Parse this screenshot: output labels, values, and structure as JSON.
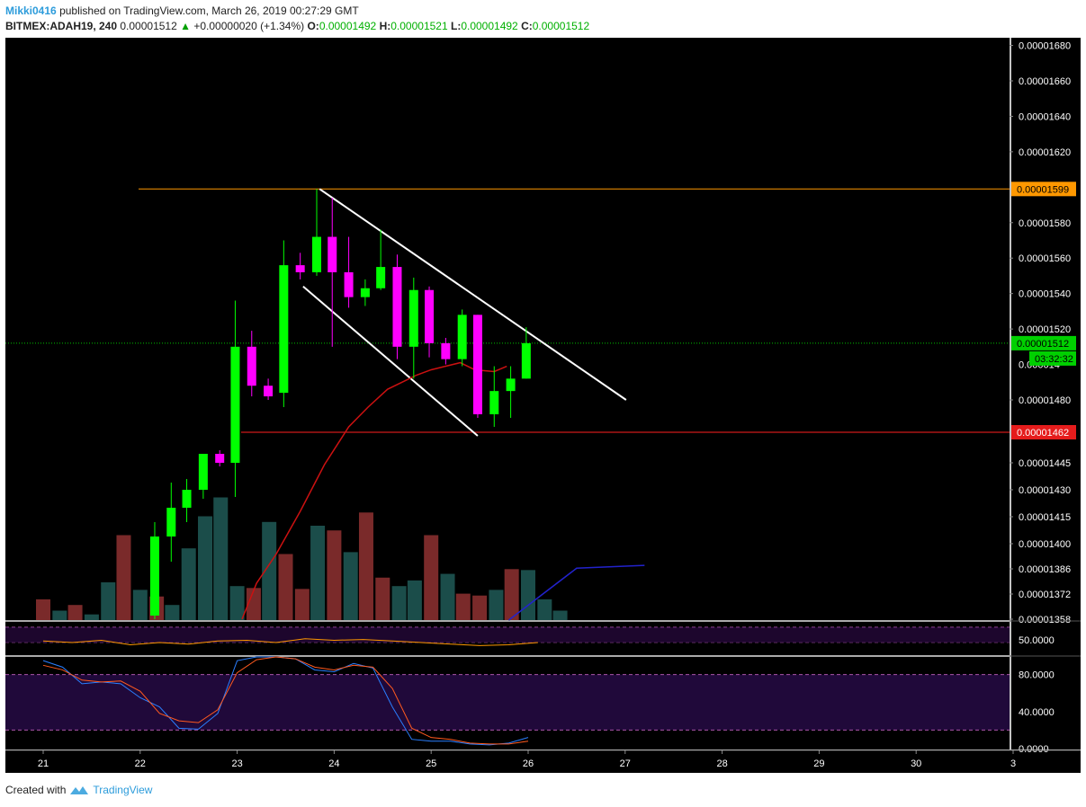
{
  "header": {
    "author": "Mikki0416",
    "published": "published on TradingView.com, March 26, 2019 00:27:29 GMT",
    "symbol": "BITMEX:ADAH19, 240",
    "last": "0.00001512",
    "change_icon": "up-triangle-icon",
    "change": "+0.00000020 (+1.34%)",
    "o_label": "O:",
    "o": "0.00001492",
    "h_label": "H:",
    "h": "0.00001521",
    "l_label": "L:",
    "l": "0.00001492",
    "c_label": "C:",
    "c": "0.00001512"
  },
  "footer": {
    "created": "Created with",
    "brand": "TradingView",
    "logo_icon": "tradingview-logo-icon"
  },
  "colors": {
    "background": "#000000",
    "up": "#00ff00",
    "down": "#ff00ff",
    "vol_up": "#1b4d4a",
    "vol_down": "#7a2a2a",
    "ma": "#cc1111",
    "resistance": "#ff9800",
    "support": "#ff2020",
    "current": "#00c000",
    "channel": "#ffffff",
    "vol_ma": "#2222cc",
    "rsi": "#ff9800",
    "osc_band": "#20093a",
    "stoch_k": "#2a7fff",
    "stoch_d": "#ff5a1f"
  },
  "chart_data": {
    "type": "candlestick",
    "x_tick_labels": [
      "21",
      "22",
      "23",
      "24",
      "25",
      "26",
      "27",
      "28",
      "29",
      "30",
      "3"
    ],
    "price_tick_labels": [
      "0.00001680",
      "0.00001660",
      "0.00001640",
      "0.00001620",
      "0.00001580",
      "0.00001560",
      "0.00001540",
      "0.00001520",
      "0.00001445",
      "0.00001430",
      "0.00001415",
      "0.00001400",
      "0.00001386",
      "0.00001372",
      "0.00001358"
    ],
    "price_tick_values": [
      16.8,
      16.6,
      16.4,
      16.2,
      15.8,
      15.6,
      15.4,
      15.2,
      14.45,
      14.3,
      14.15,
      14.0,
      13.86,
      13.72,
      13.58
    ],
    "price_tick_partial": "0.000014",
    "price_tick_partial_value": 15.0,
    "price_tick_480": "0.00001480",
    "price_tick_480_value": 14.8,
    "resistance_label": "0.00001599",
    "resistance": 15.99,
    "support_label": "0.00001462",
    "support": 14.62,
    "current_label": "0.00001512",
    "current": 15.12,
    "countdown": "03:32:32",
    "candles": [
      {
        "t": 21.8,
        "o": 13.6,
        "h": 14.12,
        "l": 13.58,
        "c": 14.04
      },
      {
        "t": 21.97,
        "o": 14.04,
        "h": 14.34,
        "l": 13.9,
        "c": 14.2
      },
      {
        "t": 22.13,
        "o": 14.2,
        "h": 14.36,
        "l": 14.12,
        "c": 14.3
      },
      {
        "t": 22.3,
        "o": 14.3,
        "h": 14.5,
        "l": 14.25,
        "c": 14.5
      },
      {
        "t": 22.47,
        "o": 14.5,
        "h": 14.52,
        "l": 14.43,
        "c": 14.45
      },
      {
        "t": 22.63,
        "o": 14.45,
        "h": 15.36,
        "l": 14.26,
        "c": 15.1
      },
      {
        "t": 22.8,
        "o": 15.1,
        "h": 15.19,
        "l": 14.82,
        "c": 14.88
      },
      {
        "t": 22.97,
        "o": 14.88,
        "h": 14.92,
        "l": 14.8,
        "c": 14.82
      },
      {
        "t": 23.13,
        "o": 14.84,
        "h": 15.7,
        "l": 14.76,
        "c": 15.56
      },
      {
        "t": 23.3,
        "o": 15.56,
        "h": 15.63,
        "l": 15.48,
        "c": 15.52
      },
      {
        "t": 23.47,
        "o": 15.52,
        "h": 15.99,
        "l": 15.5,
        "c": 15.72
      },
      {
        "t": 23.63,
        "o": 15.72,
        "h": 15.94,
        "l": 15.1,
        "c": 15.52
      },
      {
        "t": 23.8,
        "o": 15.52,
        "h": 15.72,
        "l": 15.32,
        "c": 15.38
      },
      {
        "t": 23.97,
        "o": 15.38,
        "h": 15.48,
        "l": 15.33,
        "c": 15.43
      },
      {
        "t": 24.13,
        "o": 15.43,
        "h": 15.76,
        "l": 15.42,
        "c": 15.55
      },
      {
        "t": 24.3,
        "o": 15.55,
        "h": 15.62,
        "l": 15.03,
        "c": 15.1
      },
      {
        "t": 24.47,
        "o": 15.1,
        "h": 15.49,
        "l": 14.92,
        "c": 15.42
      },
      {
        "t": 24.63,
        "o": 15.42,
        "h": 15.44,
        "l": 15.04,
        "c": 15.12
      },
      {
        "t": 24.8,
        "o": 15.12,
        "h": 15.15,
        "l": 15.0,
        "c": 15.03
      },
      {
        "t": 24.97,
        "o": 15.03,
        "h": 15.31,
        "l": 14.99,
        "c": 15.28
      },
      {
        "t": 25.13,
        "o": 15.28,
        "h": 15.28,
        "l": 14.7,
        "c": 14.72
      },
      {
        "t": 25.3,
        "o": 14.72,
        "h": 14.99,
        "l": 14.65,
        "c": 14.85
      },
      {
        "t": 25.47,
        "o": 14.85,
        "h": 14.99,
        "l": 14.7,
        "c": 14.92
      },
      {
        "t": 25.63,
        "o": 14.92,
        "h": 15.21,
        "l": 14.92,
        "c": 15.12
      }
    ],
    "ma": [
      [
        22.9,
        13.58
      ],
      [
        23.05,
        13.78
      ],
      [
        23.25,
        13.94
      ],
      [
        23.5,
        14.18
      ],
      [
        23.75,
        14.44
      ],
      [
        24.0,
        14.65
      ],
      [
        24.2,
        14.76
      ],
      [
        24.4,
        14.86
      ],
      [
        24.55,
        14.9
      ],
      [
        24.7,
        14.94
      ],
      [
        24.85,
        14.97
      ],
      [
        25.0,
        14.99
      ],
      [
        25.15,
        15.01
      ],
      [
        25.3,
        14.97
      ],
      [
        25.5,
        14.96
      ],
      [
        25.63,
        14.99
      ]
    ],
    "volume": [
      {
        "t": 21.0,
        "v": 0.22,
        "dir": "down"
      },
      {
        "t": 21.17,
        "v": 0.1,
        "dir": "up"
      },
      {
        "t": 21.33,
        "v": 0.16,
        "dir": "down"
      },
      {
        "t": 21.5,
        "v": 0.06,
        "dir": "up"
      },
      {
        "t": 21.67,
        "v": 0.4,
        "dir": "up"
      },
      {
        "t": 21.83,
        "v": 0.9,
        "dir": "down"
      },
      {
        "t": 22.0,
        "v": 0.32,
        "dir": "up"
      },
      {
        "t": 22.17,
        "v": 0.25,
        "dir": "down"
      },
      {
        "t": 22.33,
        "v": 0.16,
        "dir": "up"
      },
      {
        "t": 22.5,
        "v": 0.76,
        "dir": "up"
      },
      {
        "t": 22.67,
        "v": 1.1,
        "dir": "up"
      },
      {
        "t": 22.83,
        "v": 1.3,
        "dir": "up"
      },
      {
        "t": 23.0,
        "v": 0.36,
        "dir": "up"
      },
      {
        "t": 23.17,
        "v": 0.34,
        "dir": "down"
      },
      {
        "t": 23.33,
        "v": 1.04,
        "dir": "up"
      },
      {
        "t": 23.5,
        "v": 0.7,
        "dir": "down"
      },
      {
        "t": 23.67,
        "v": 0.33,
        "dir": "down"
      },
      {
        "t": 23.83,
        "v": 1.0,
        "dir": "up"
      },
      {
        "t": 24.0,
        "v": 0.95,
        "dir": "down"
      },
      {
        "t": 24.17,
        "v": 0.72,
        "dir": "up"
      },
      {
        "t": 24.33,
        "v": 1.14,
        "dir": "down"
      },
      {
        "t": 24.5,
        "v": 0.45,
        "dir": "down"
      },
      {
        "t": 24.67,
        "v": 0.36,
        "dir": "up"
      },
      {
        "t": 24.83,
        "v": 0.42,
        "dir": "up"
      },
      {
        "t": 25.0,
        "v": 0.9,
        "dir": "down"
      },
      {
        "t": 25.17,
        "v": 0.49,
        "dir": "up"
      },
      {
        "t": 25.33,
        "v": 0.28,
        "dir": "down"
      },
      {
        "t": 25.5,
        "v": 0.26,
        "dir": "down"
      },
      {
        "t": 25.67,
        "v": 0.32,
        "dir": "up"
      },
      {
        "t": 25.83,
        "v": 0.54,
        "dir": "down"
      },
      {
        "t": 26.0,
        "v": 0.53,
        "dir": "up"
      },
      {
        "t": 26.17,
        "v": 0.22,
        "dir": "up"
      },
      {
        "t": 26.33,
        "v": 0.1,
        "dir": "up"
      }
    ],
    "vol_ma": [
      [
        25.8,
        0.0
      ],
      [
        26.5,
        0.55
      ],
      [
        27.2,
        0.58
      ]
    ],
    "rsi_label": "50.0000",
    "rsi": [
      [
        21.0,
        52
      ],
      [
        21.3,
        50
      ],
      [
        21.6,
        53
      ],
      [
        21.9,
        47
      ],
      [
        22.2,
        50
      ],
      [
        22.5,
        48
      ],
      [
        22.8,
        52
      ],
      [
        23.1,
        53
      ],
      [
        23.4,
        50
      ],
      [
        23.7,
        55
      ],
      [
        24.0,
        53
      ],
      [
        24.3,
        54
      ],
      [
        24.6,
        52
      ],
      [
        24.9,
        50
      ],
      [
        25.2,
        48
      ],
      [
        25.5,
        46
      ],
      [
        25.8,
        47
      ],
      [
        26.1,
        50
      ]
    ],
    "stoch_tick_labels": [
      "80.0000",
      "40.0000",
      "0.0000"
    ],
    "stoch_tick_values": [
      80,
      40,
      0
    ],
    "stoch_band": [
      20,
      80
    ],
    "stoch_k": [
      [
        21.0,
        95
      ],
      [
        21.2,
        88
      ],
      [
        21.4,
        70
      ],
      [
        21.6,
        72
      ],
      [
        21.8,
        70
      ],
      [
        22.0,
        55
      ],
      [
        22.2,
        45
      ],
      [
        22.4,
        22
      ],
      [
        22.6,
        21
      ],
      [
        22.8,
        38
      ],
      [
        23.0,
        95
      ],
      [
        23.2,
        99
      ],
      [
        23.4,
        99
      ],
      [
        23.6,
        97
      ],
      [
        23.8,
        85
      ],
      [
        24.0,
        83
      ],
      [
        24.2,
        92
      ],
      [
        24.4,
        87
      ],
      [
        24.6,
        45
      ],
      [
        24.8,
        10
      ],
      [
        25.0,
        8
      ],
      [
        25.2,
        8
      ],
      [
        25.4,
        5
      ],
      [
        25.6,
        4
      ],
      [
        25.8,
        6
      ],
      [
        26.0,
        12
      ]
    ],
    "stoch_d": [
      [
        21.0,
        90
      ],
      [
        21.2,
        85
      ],
      [
        21.4,
        74
      ],
      [
        21.6,
        72
      ],
      [
        21.8,
        73
      ],
      [
        22.0,
        62
      ],
      [
        22.2,
        38
      ],
      [
        22.4,
        30
      ],
      [
        22.6,
        28
      ],
      [
        22.8,
        42
      ],
      [
        23.0,
        82
      ],
      [
        23.2,
        96
      ],
      [
        23.4,
        99
      ],
      [
        23.6,
        97
      ],
      [
        23.8,
        88
      ],
      [
        24.0,
        85
      ],
      [
        24.2,
        90
      ],
      [
        24.4,
        88
      ],
      [
        24.6,
        65
      ],
      [
        24.8,
        22
      ],
      [
        25.0,
        12
      ],
      [
        25.2,
        10
      ],
      [
        25.4,
        6
      ],
      [
        25.6,
        5
      ],
      [
        25.8,
        5
      ],
      [
        26.0,
        8
      ]
    ]
  }
}
